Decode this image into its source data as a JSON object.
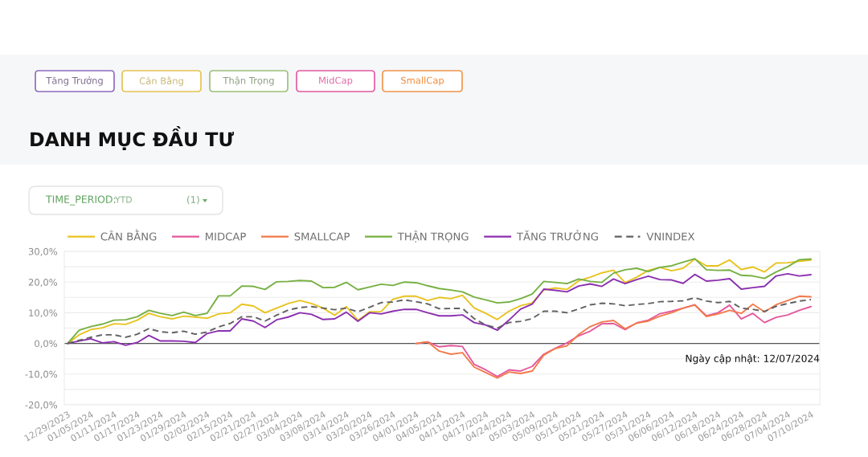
{
  "chart_data": {
    "type": "line",
    "title": "DANH MỤC ĐẦU TƯ",
    "annotations": [
      "Tăng Trưởng",
      "Cân Bằng",
      "Thận Trọng",
      "MidCap",
      "SmallCap",
      "TIME_PERIOD:",
      "YTD",
      "(1)",
      "Ngày cập nhật: 12/07/2024"
    ],
    "categories": [
      "12/29/2023",
      null,
      "01/05/2024",
      null,
      "01/11/2024",
      null,
      "01/17/2024",
      null,
      "01/23/2024",
      null,
      "01/29/2024",
      null,
      "02/02/2024",
      null,
      "02/15/2024",
      null,
      "02/21/2024",
      null,
      "02/27/2024",
      null,
      "03/04/2024",
      null,
      "03/08/2024",
      null,
      "03/14/2024",
      null,
      "03/20/2024",
      null,
      "03/26/2024",
      null,
      "04/01/2024",
      null,
      "04/05/2024",
      null,
      "04/11/2024",
      null,
      "04/17/2024",
      null,
      "04/24/2024",
      null,
      "05/03/2024",
      null,
      "05/09/2024",
      null,
      "05/15/2024",
      null,
      "05/21/2024",
      null,
      "05/27/2024",
      null,
      "05/31/2024",
      null,
      "06/06/2024",
      null,
      "06/12/2024",
      null,
      "06/18/2024",
      null,
      "06/24/2024",
      null,
      "06/28/2024",
      null,
      "07/04/2024",
      null,
      "07/10/2024"
    ],
    "series": [
      {
        "name": "CÂN BẰNG",
        "color": "#e8c31e",
        "line_style": "solid",
        "values": [
          0,
          2.8,
          4.5,
          5.1,
          6.4,
          6.2,
          7.6,
          9.8,
          8.7,
          8.0,
          8.9,
          8.6,
          8.2,
          9.6,
          10.0,
          12.8,
          12.2,
          10.0,
          11.5,
          13.0,
          14.0,
          13.0,
          11.5,
          9.2,
          12.0,
          7.5,
          10.3,
          10.4,
          14.4,
          15.4,
          15.4,
          14.0,
          15.0,
          14.6,
          15.7,
          11.6,
          9.8,
          7.8,
          10.5,
          12.3,
          13.2,
          17.4,
          18.1,
          17.6,
          20.4,
          21.6,
          23.0,
          23.9,
          19.8,
          21.6,
          23.8,
          24.8,
          23.7,
          24.5,
          27.5,
          25.3,
          25.3,
          27.2,
          24.1,
          24.9,
          23.3,
          26.2,
          26.3,
          26.8,
          27.2
        ]
      },
      {
        "name": "MIDCAP",
        "color": "#e5589c",
        "line_style": "solid",
        "values": [
          null,
          null,
          null,
          null,
          null,
          null,
          null,
          null,
          null,
          null,
          null,
          null,
          null,
          null,
          null,
          null,
          null,
          null,
          null,
          null,
          null,
          null,
          null,
          null,
          null,
          null,
          null,
          null,
          null,
          null,
          0.0,
          0.5,
          -1.1,
          -0.7,
          -1.0,
          -6.8,
          -8.6,
          -10.8,
          -8.6,
          -9.0,
          -7.5,
          -3.5,
          -1.6,
          0.2,
          2.5,
          4.0,
          6.4,
          6.5,
          4.5,
          6.7,
          7.6,
          9.7,
          10.5,
          11.5,
          12.6,
          9.0,
          10.0,
          12.5,
          8.0,
          9.8,
          6.8,
          8.5,
          9.3,
          10.8,
          12.0
        ]
      },
      {
        "name": "SMALLCAP",
        "color": "#f27a4a",
        "line_style": "solid",
        "values": [
          null,
          null,
          null,
          null,
          null,
          null,
          null,
          null,
          null,
          null,
          null,
          null,
          null,
          null,
          null,
          null,
          null,
          null,
          null,
          null,
          null,
          null,
          null,
          null,
          null,
          null,
          null,
          null,
          null,
          null,
          0.0,
          0.5,
          -2.5,
          -3.5,
          -3.0,
          -7.7,
          -9.5,
          -11.3,
          -9.3,
          -9.8,
          -9.0,
          -3.8,
          -1.6,
          -0.8,
          2.9,
          5.5,
          7.0,
          7.5,
          4.8,
          6.6,
          7.3,
          8.9,
          10.0,
          11.5,
          12.5,
          8.8,
          9.6,
          10.8,
          9.8,
          12.8,
          10.3,
          12.6,
          14.0,
          15.4,
          15.2
        ]
      },
      {
        "name": "THẬN TRỌNG",
        "color": "#76b041",
        "line_style": "solid",
        "values": [
          0,
          4.3,
          5.5,
          6.3,
          7.6,
          7.7,
          8.7,
          10.8,
          9.8,
          9.1,
          10.2,
          9.1,
          9.8,
          15.5,
          15.5,
          18.7,
          18.6,
          17.6,
          20.1,
          20.2,
          20.5,
          20.3,
          18.2,
          18.3,
          19.9,
          17.5,
          18.4,
          19.3,
          18.9,
          20.0,
          19.8,
          18.8,
          17.9,
          17.4,
          16.8,
          15.1,
          14.2,
          13.2,
          13.5,
          14.6,
          16.1,
          20.2,
          19.9,
          19.5,
          21.0,
          20.2,
          19.9,
          22.9,
          24.0,
          24.5,
          23.4,
          24.8,
          25.3,
          26.5,
          27.6,
          24.0,
          23.8,
          23.9,
          22.2,
          22.0,
          21.2,
          23.3,
          25.0,
          27.3,
          27.5
        ]
      },
      {
        "name": "TĂNG TRƯỞNG",
        "color": "#8b2fb0",
        "line_style": "solid",
        "values": [
          0,
          0.8,
          1.5,
          0.2,
          0.6,
          -0.6,
          0.3,
          2.6,
          0.8,
          0.8,
          0.7,
          0.3,
          3.2,
          4.1,
          4.1,
          8.0,
          7.3,
          5.2,
          7.7,
          8.6,
          10.0,
          9.5,
          7.8,
          8.0,
          10.2,
          7.2,
          10.0,
          9.6,
          10.5,
          11.1,
          11.1,
          10.0,
          9.0,
          9.0,
          9.3,
          6.8,
          6.0,
          4.3,
          7.6,
          11.2,
          12.8,
          17.7,
          17.3,
          16.8,
          18.7,
          19.4,
          18.6,
          21.0,
          19.5,
          20.8,
          21.9,
          20.8,
          20.7,
          19.6,
          22.5,
          20.3,
          20.6,
          21.1,
          17.7,
          18.2,
          18.6,
          22.0,
          22.7,
          22.0,
          22.4
        ]
      },
      {
        "name": "VNINDEX",
        "color": "#606060",
        "line_style": "dashed",
        "values": [
          0,
          1.0,
          2.0,
          2.8,
          2.8,
          2.0,
          3.0,
          4.8,
          3.8,
          3.5,
          4.0,
          3.0,
          3.7,
          5.4,
          6.5,
          8.7,
          8.7,
          7.3,
          9.2,
          10.9,
          11.7,
          12.0,
          11.5,
          11.0,
          11.5,
          10.3,
          11.8,
          13.3,
          13.5,
          14.2,
          13.6,
          12.9,
          11.3,
          11.4,
          11.4,
          8.1,
          6.0,
          5.0,
          6.8,
          7.2,
          8.1,
          10.5,
          10.5,
          10.0,
          11.2,
          12.6,
          13.1,
          12.9,
          12.3,
          12.7,
          13.0,
          13.6,
          13.7,
          13.9,
          14.9,
          13.8,
          13.3,
          13.7,
          11.5,
          11.1,
          10.4,
          12.1,
          13.0,
          13.8,
          14.3
        ]
      }
    ],
    "ylim": [
      -20,
      30
    ],
    "yticks": [
      {
        "value": -20,
        "label": "-20,0%"
      },
      {
        "value": -15,
        "label": null
      },
      {
        "value": -10,
        "label": "-10,0%"
      },
      {
        "value": -5,
        "label": null
      },
      {
        "value": 0,
        "label": "0,0%"
      },
      {
        "value": 5,
        "label": null
      },
      {
        "value": 10,
        "label": "10,0%"
      },
      {
        "value": 15,
        "label": null
      },
      {
        "value": 20,
        "label": "20,0%"
      },
      {
        "value": 25,
        "label": null
      },
      {
        "value": 30,
        "label": "30,0%"
      }
    ],
    "ref_lines": [
      {
        "axis": "y",
        "value": 0,
        "color": "#555555"
      }
    ],
    "grid": "y",
    "legend": "top"
  }
}
